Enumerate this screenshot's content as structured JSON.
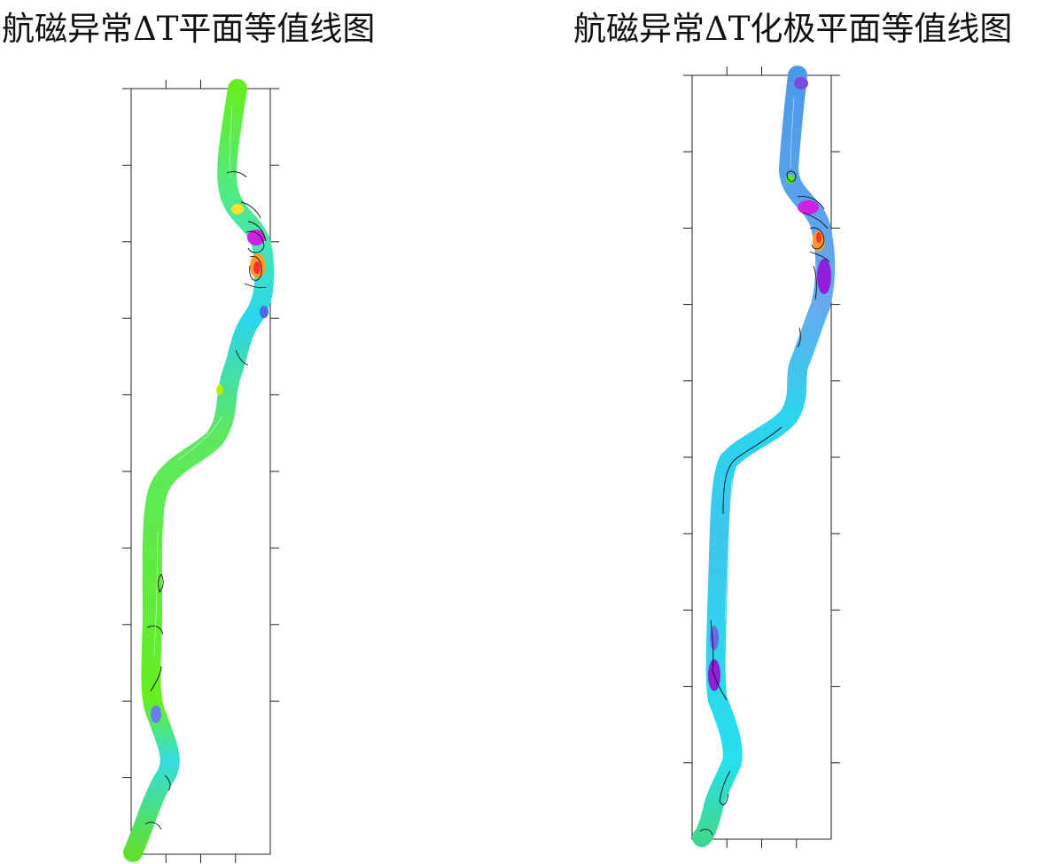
{
  "maps": [
    {
      "title": "航磁异常ΔT平面等值线图",
      "frame_ticks": {
        "top": 3,
        "bottom": 3,
        "left": 10,
        "right": 9
      },
      "palette": [
        "#ff3030",
        "#ff9a30",
        "#ffe030",
        "#b8f000",
        "#55ee22",
        "#22f0d0",
        "#2dd8f0",
        "#4a90e8",
        "#7a4ae0",
        "#d020e0"
      ]
    },
    {
      "title": "航磁异常ΔT化极平面等值线图",
      "frame_ticks": {
        "top": 3,
        "bottom": 3,
        "left": 10,
        "right": 10
      },
      "palette": [
        "#ff3030",
        "#ff9a30",
        "#ffe030",
        "#b8f000",
        "#55ee22",
        "#22f0d0",
        "#2dd8f0",
        "#4a90e8",
        "#7a4ae0",
        "#d020e0"
      ]
    }
  ]
}
